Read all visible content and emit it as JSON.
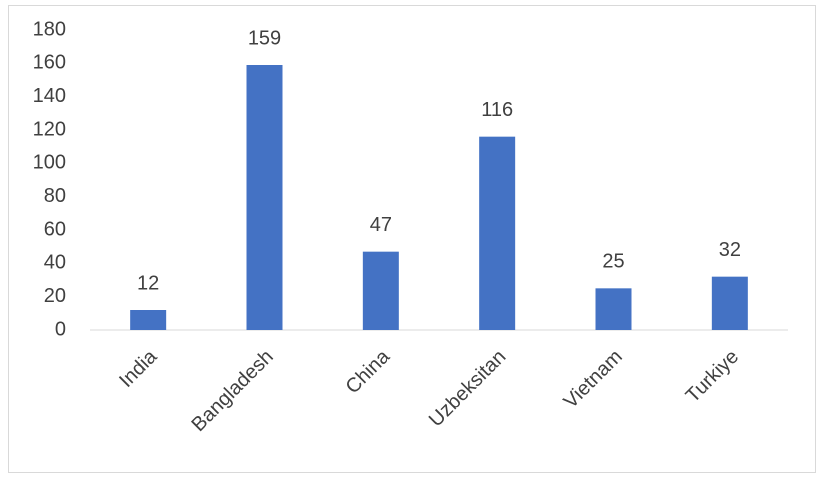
{
  "chart_data": {
    "type": "bar",
    "categories": [
      "India",
      "Bangladesh",
      "China",
      "Uzbeksitan",
      "Vietnam",
      "Turkiye"
    ],
    "values": [
      12,
      159,
      47,
      116,
      25,
      32
    ],
    "color": "#4472c4",
    "ylim": [
      0,
      180
    ],
    "yticks": [
      0,
      20,
      40,
      60,
      80,
      100,
      120,
      140,
      160,
      180
    ],
    "grid": false,
    "data_labels": true
  }
}
